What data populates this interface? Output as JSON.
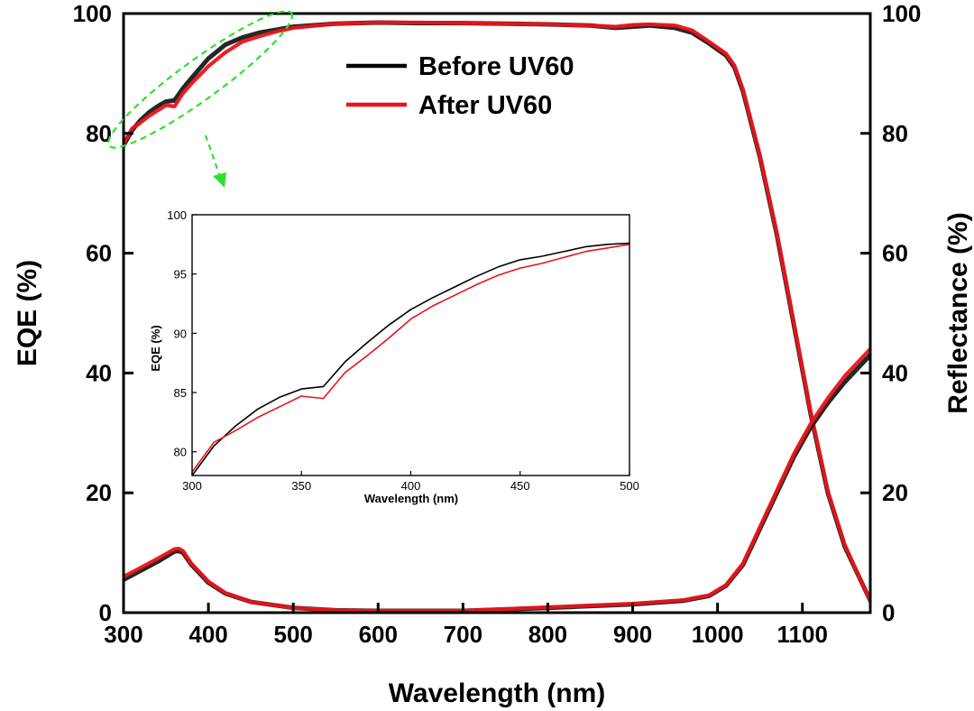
{
  "colors": {
    "before": "#000000",
    "after": "#e8141a",
    "annotation": "#2ee02e"
  },
  "chart_data": [
    {
      "type": "line",
      "xlabel": "Wavelength (nm)",
      "ylabel": "EQE (%)",
      "y2label": "Reflectance (%)",
      "xlim": [
        300,
        1180
      ],
      "ylim": [
        0,
        100
      ],
      "y2lim": [
        0,
        100
      ],
      "xticks": [
        300,
        400,
        500,
        600,
        700,
        800,
        900,
        1000,
        1100
      ],
      "yticks": [
        0,
        20,
        40,
        60,
        80,
        100
      ],
      "y2ticks": [
        0,
        20,
        40,
        60,
        80,
        100
      ],
      "legend": {
        "position": "top-center",
        "entries": [
          "Before UV60",
          "After UV60"
        ]
      },
      "series": [
        {
          "name": "Before UV60",
          "axis": "left",
          "metric": "EQE",
          "x": [
            300,
            310,
            320,
            330,
            340,
            350,
            360,
            370,
            380,
            400,
            420,
            440,
            460,
            480,
            500,
            550,
            600,
            650,
            700,
            750,
            800,
            850,
            880,
            900,
            920,
            950,
            970,
            990,
            1010,
            1020,
            1030,
            1050,
            1070,
            1090,
            1110,
            1130,
            1150,
            1170,
            1180
          ],
          "y": [
            78,
            80.5,
            82.2,
            83.5,
            84.5,
            85.3,
            85.5,
            87.5,
            89.2,
            92.5,
            94.8,
            96,
            96.8,
            97.3,
            97.8,
            98.3,
            98.5,
            98.4,
            98.4,
            98.3,
            98.2,
            98,
            97.6,
            97.8,
            98,
            97.6,
            96.8,
            95,
            93,
            91,
            87,
            76,
            63,
            48,
            33,
            20,
            11,
            5,
            2
          ]
        },
        {
          "name": "After UV60",
          "axis": "left",
          "metric": "EQE",
          "x": [
            300,
            310,
            320,
            330,
            340,
            350,
            360,
            370,
            380,
            400,
            420,
            440,
            460,
            480,
            500,
            550,
            600,
            650,
            700,
            750,
            800,
            850,
            880,
            900,
            920,
            950,
            970,
            990,
            1010,
            1020,
            1030,
            1050,
            1070,
            1090,
            1110,
            1130,
            1150,
            1170,
            1180
          ],
          "y": [
            78.3,
            80.8,
            81.8,
            82.9,
            83.8,
            84.7,
            84.5,
            86.7,
            88.3,
            91.2,
            93.5,
            95.3,
            96.2,
            97,
            97.6,
            98.3,
            98.5,
            98.5,
            98.4,
            98.3,
            98.2,
            98,
            97.8,
            98.1,
            98.2,
            98,
            97.2,
            95.3,
            93.3,
            91.3,
            87.3,
            76.3,
            63.3,
            48.3,
            33.3,
            20.3,
            11.3,
            5,
            2
          ]
        },
        {
          "name": "Before UV60",
          "axis": "right",
          "metric": "Reflectance",
          "x": [
            300,
            320,
            340,
            360,
            365,
            370,
            380,
            400,
            420,
            450,
            500,
            550,
            600,
            700,
            800,
            900,
            960,
            990,
            1010,
            1030,
            1050,
            1070,
            1090,
            1110,
            1130,
            1150,
            1170,
            1180
          ],
          "y": [
            5.5,
            7,
            8.5,
            10.2,
            10.3,
            10,
            8,
            5,
            3.2,
            1.8,
            0.8,
            0.4,
            0.3,
            0.3,
            0.8,
            1.4,
            2,
            2.8,
            4.5,
            8,
            14,
            20,
            26,
            31,
            35,
            38.5,
            41.5,
            43
          ]
        },
        {
          "name": "After UV60",
          "axis": "right",
          "metric": "Reflectance",
          "x": [
            300,
            320,
            340,
            360,
            365,
            370,
            380,
            400,
            420,
            450,
            500,
            550,
            600,
            700,
            800,
            900,
            960,
            990,
            1010,
            1030,
            1050,
            1070,
            1090,
            1110,
            1130,
            1150,
            1170,
            1180
          ],
          "y": [
            6,
            7.5,
            9,
            10.6,
            10.7,
            10.3,
            8.2,
            5.2,
            3.3,
            1.8,
            0.8,
            0.4,
            0.3,
            0.3,
            0.9,
            1.5,
            2.1,
            2.9,
            4.6,
            8.2,
            14.3,
            20.4,
            26.5,
            31.6,
            35.8,
            39.5,
            42.5,
            44
          ]
        }
      ]
    },
    {
      "type": "line",
      "xlabel": "Wavelength (nm)",
      "ylabel": "EQE (%)",
      "xlim": [
        300,
        500
      ],
      "ylim": [
        78,
        100
      ],
      "xticks": [
        300,
        350,
        400,
        450,
        500
      ],
      "yticks": [
        80,
        85,
        90,
        95,
        100
      ],
      "series": [
        {
          "name": "Before UV60",
          "x": [
            300,
            310,
            320,
            330,
            340,
            350,
            360,
            370,
            380,
            390,
            400,
            410,
            420,
            430,
            440,
            450,
            460,
            470,
            480,
            490,
            500
          ],
          "y": [
            78,
            80.5,
            82.2,
            83.6,
            84.6,
            85.3,
            85.5,
            87.6,
            89.2,
            90.7,
            92,
            93,
            93.9,
            94.8,
            95.6,
            96.2,
            96.5,
            96.9,
            97.3,
            97.5,
            97.6
          ]
        },
        {
          "name": "After UV60",
          "x": [
            300,
            310,
            320,
            330,
            340,
            350,
            360,
            370,
            380,
            390,
            400,
            410,
            420,
            430,
            440,
            450,
            460,
            470,
            480,
            490,
            500
          ],
          "y": [
            78.3,
            80.8,
            81.8,
            82.9,
            83.8,
            84.7,
            84.5,
            86.7,
            88.1,
            89.6,
            91.2,
            92.3,
            93.2,
            94.1,
            94.9,
            95.5,
            95.9,
            96.4,
            96.9,
            97.2,
            97.5
          ]
        }
      ]
    }
  ]
}
